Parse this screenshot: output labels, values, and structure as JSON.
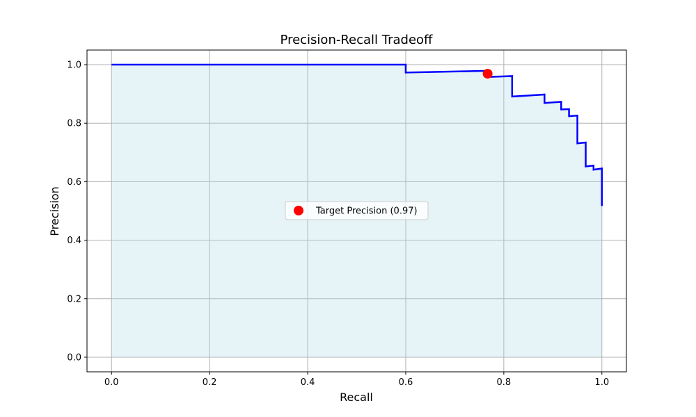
{
  "chart_data": {
    "type": "line",
    "title": "Precision-Recall Tradeoff",
    "xlabel": "Recall",
    "ylabel": "Precision",
    "xlim": [
      -0.05,
      1.05
    ],
    "ylim": [
      -0.05,
      1.05
    ],
    "xticks": [
      0.0,
      0.2,
      0.4,
      0.6,
      0.8,
      1.0
    ],
    "xtick_labels": [
      "0.0",
      "0.2",
      "0.4",
      "0.6",
      "0.8",
      "1.0"
    ],
    "yticks": [
      0.0,
      0.2,
      0.4,
      0.6,
      0.8,
      1.0
    ],
    "ytick_labels": [
      "0.0",
      "0.2",
      "0.4",
      "0.6",
      "0.8",
      "1.0"
    ],
    "grid": true,
    "legend_position": "center",
    "series": [
      {
        "kind": "step-line",
        "color": "#0000ff",
        "fill_color": "#add8e6",
        "points": [
          [
            0.0,
            1.0
          ],
          [
            0.6,
            1.0
          ],
          [
            0.6,
            0.973
          ],
          [
            0.767,
            0.979
          ],
          [
            0.767,
            0.958
          ],
          [
            0.817,
            0.961
          ],
          [
            0.817,
            0.891
          ],
          [
            0.883,
            0.898
          ],
          [
            0.883,
            0.869
          ],
          [
            0.917,
            0.873
          ],
          [
            0.917,
            0.847
          ],
          [
            0.933,
            0.848
          ],
          [
            0.933,
            0.824
          ],
          [
            0.95,
            0.826
          ],
          [
            0.95,
            0.731
          ],
          [
            0.967,
            0.734
          ],
          [
            0.967,
            0.652
          ],
          [
            0.983,
            0.655
          ],
          [
            0.983,
            0.641
          ],
          [
            1.0,
            0.645
          ],
          [
            1.0,
            0.517
          ]
        ]
      },
      {
        "kind": "marker",
        "name": "Target Precision (0.97)",
        "color": "#ff0000",
        "points": [
          [
            0.767,
            0.969
          ]
        ]
      }
    ]
  }
}
